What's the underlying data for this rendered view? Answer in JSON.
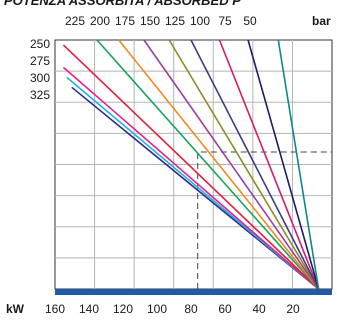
{
  "chart_data": {
    "type": "line",
    "title": "POTENZA ASSORBITA / ABSORBED P",
    "x_unit": "kW",
    "top_unit": "bar",
    "x_ticks": [
      "160",
      "140",
      "120",
      "100",
      "80",
      "60",
      "40",
      "20"
    ],
    "top_ticks": [
      "225",
      "200",
      "175",
      "150",
      "125",
      "100",
      "75",
      "50"
    ],
    "left_ticks": [
      "250",
      "275",
      "300",
      "325"
    ],
    "series": [
      {
        "color": "#2b2f8c",
        "x": [
          155,
          8
        ],
        "y": [
          0.81,
          0.0
        ]
      },
      {
        "color": "#1fb2e6",
        "x": [
          158,
          8
        ],
        "y": [
          0.85,
          0.0
        ]
      },
      {
        "color": "#e61f8c",
        "x": [
          160,
          8
        ],
        "y": [
          0.89,
          0.0
        ]
      },
      {
        "color": "#e0203c",
        "x": [
          160,
          8
        ],
        "y": [
          0.98,
          0.0
        ]
      },
      {
        "color": "#1aa35a",
        "x": [
          140,
          8
        ],
        "y": [
          1.0,
          0.0
        ]
      },
      {
        "color": "#f08a1c",
        "x": [
          127,
          8
        ],
        "y": [
          1.0,
          0.0
        ]
      },
      {
        "color": "#9c3ea0",
        "x": [
          112,
          8
        ],
        "y": [
          1.0,
          0.0
        ]
      },
      {
        "color": "#8c8c2a",
        "x": [
          97,
          8
        ],
        "y": [
          1.0,
          0.0
        ]
      },
      {
        "color": "#3c3c8c",
        "x": [
          84,
          8
        ],
        "y": [
          1.0,
          0.0
        ]
      },
      {
        "color": "#d41c6a",
        "x": [
          67,
          8
        ],
        "y": [
          1.0,
          0.0
        ]
      },
      {
        "color": "#1c1c6a",
        "x": [
          50,
          8
        ],
        "y": [
          1.0,
          0.0
        ]
      },
      {
        "color": "#0c8a8a",
        "x": [
          32,
          8
        ],
        "y": [
          1.0,
          0.0
        ]
      }
    ],
    "reference_lines": [
      {
        "x": [
          80,
          80,
          0
        ],
        "y": [
          0.0,
          0.55,
          0.55
        ],
        "style": "dashed"
      }
    ],
    "xlim": [
      165,
      0
    ],
    "ylim": [
      0,
      1
    ],
    "grid": true
  }
}
